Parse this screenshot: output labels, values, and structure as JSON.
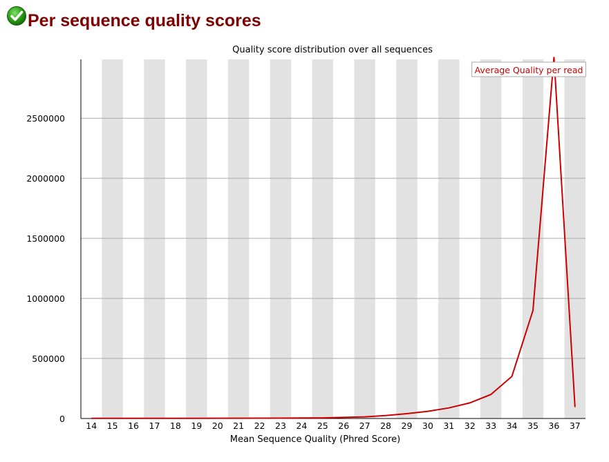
{
  "header": {
    "title": "Per sequence quality scores",
    "status_icon": "check-circle-icon",
    "status_color": "#2e9e19"
  },
  "chart_data": {
    "type": "line",
    "title": "Quality score distribution over all sequences",
    "xlabel": "Mean Sequence Quality (Phred Score)",
    "ylabel": "",
    "x": [
      14,
      15,
      16,
      17,
      18,
      19,
      20,
      21,
      22,
      23,
      24,
      25,
      26,
      27,
      28,
      29,
      30,
      31,
      32,
      33,
      34,
      35,
      36,
      37
    ],
    "series": [
      {
        "name": "Average Quality per read",
        "color": "#cc0000",
        "values": [
          1000,
          1000,
          1200,
          1500,
          1800,
          2000,
          2200,
          2400,
          2600,
          3000,
          4000,
          5000,
          9000,
          14000,
          25000,
          40000,
          60000,
          88000,
          130000,
          200000,
          350000,
          900000,
          3010000,
          95000
        ]
      }
    ],
    "ylim": [
      0,
      2990000
    ],
    "yticks": [
      0,
      500000,
      1000000,
      1500000,
      2000000,
      2500000
    ],
    "ytick_labels": [
      "0",
      "500000",
      "1000000",
      "1500000",
      "2000000",
      "2500000"
    ],
    "grid": true,
    "legend": "top-right",
    "band_color": "#e2e2e2",
    "gridline_color": "#aaaaaa"
  }
}
